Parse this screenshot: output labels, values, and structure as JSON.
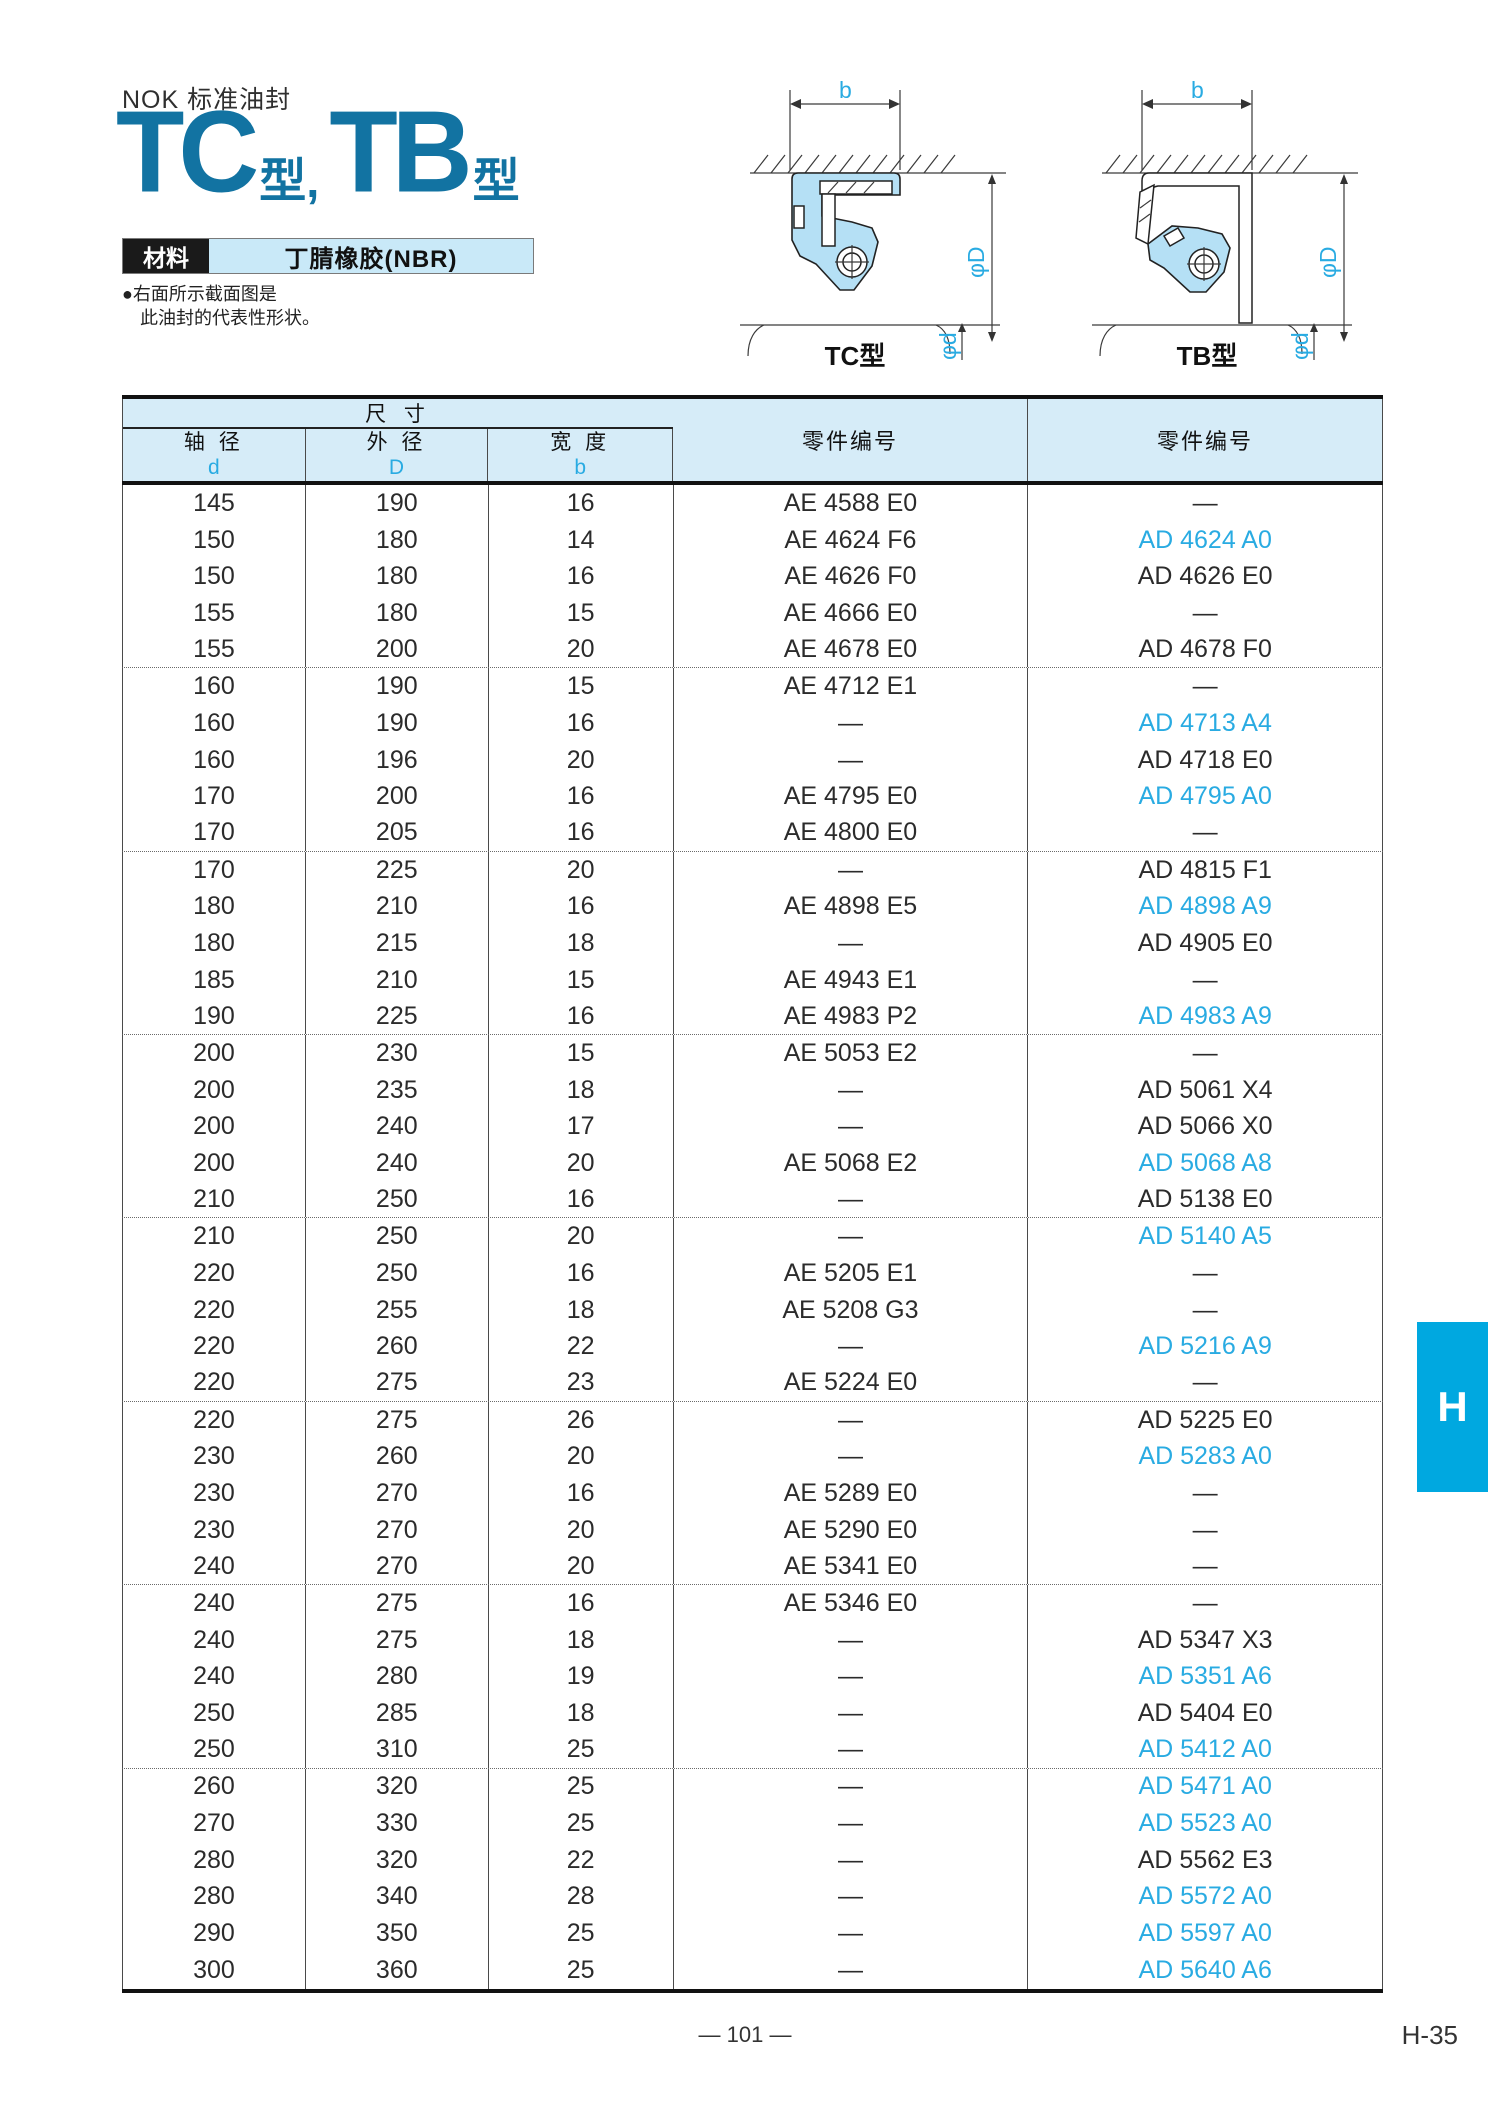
{
  "header": {
    "brand": "NOK 标准油封",
    "title": {
      "part1": "TC",
      "suffix1": "型,",
      "part2": "TB",
      "suffix2": "型"
    },
    "material_label": "材料",
    "material_value": "丁腈橡胶(NBR)",
    "note_lines": [
      "●右面所示截面图是",
      "此油封的代表性形状。"
    ]
  },
  "diagrams": {
    "tc": {
      "label": "TC型",
      "dims": {
        "width": "b",
        "outer": "φD",
        "shaft": "φd"
      }
    },
    "tb": {
      "label": "TB型",
      "dims": {
        "width": "b",
        "outer": "φD",
        "shaft": "φd"
      }
    }
  },
  "table": {
    "group_header": "尺 寸",
    "columns": [
      {
        "label": "轴 径",
        "symbol": "d"
      },
      {
        "label": "外 径",
        "symbol": "D"
      },
      {
        "label": "宽 度",
        "symbol": "b"
      },
      {
        "label": "零件编号"
      },
      {
        "label": "零件编号"
      }
    ],
    "rows": [
      {
        "d": "145",
        "D": "190",
        "b": "16",
        "tc": "AE 4588 E0",
        "tc_blue": false,
        "tb": "—",
        "tb_blue": false,
        "group_end": false
      },
      {
        "d": "150",
        "D": "180",
        "b": "14",
        "tc": "AE 4624 F6",
        "tc_blue": false,
        "tb": "AD 4624 A0",
        "tb_blue": true,
        "group_end": false
      },
      {
        "d": "150",
        "D": "180",
        "b": "16",
        "tc": "AE 4626 F0",
        "tc_blue": false,
        "tb": "AD 4626 E0",
        "tb_blue": false,
        "group_end": false
      },
      {
        "d": "155",
        "D": "180",
        "b": "15",
        "tc": "AE 4666 E0",
        "tc_blue": false,
        "tb": "—",
        "tb_blue": false,
        "group_end": false
      },
      {
        "d": "155",
        "D": "200",
        "b": "20",
        "tc": "AE 4678 E0",
        "tc_blue": false,
        "tb": "AD 4678 F0",
        "tb_blue": false,
        "group_end": true
      },
      {
        "d": "160",
        "D": "190",
        "b": "15",
        "tc": "AE 4712 E1",
        "tc_blue": false,
        "tb": "—",
        "tb_blue": false,
        "group_end": false
      },
      {
        "d": "160",
        "D": "190",
        "b": "16",
        "tc": "—",
        "tc_blue": false,
        "tb": "AD 4713 A4",
        "tb_blue": true,
        "group_end": false
      },
      {
        "d": "160",
        "D": "196",
        "b": "20",
        "tc": "—",
        "tc_blue": false,
        "tb": "AD 4718 E0",
        "tb_blue": false,
        "group_end": false
      },
      {
        "d": "170",
        "D": "200",
        "b": "16",
        "tc": "AE 4795 E0",
        "tc_blue": false,
        "tb": "AD 4795 A0",
        "tb_blue": true,
        "group_end": false
      },
      {
        "d": "170",
        "D": "205",
        "b": "16",
        "tc": "AE 4800 E0",
        "tc_blue": false,
        "tb": "—",
        "tb_blue": false,
        "group_end": true
      },
      {
        "d": "170",
        "D": "225",
        "b": "20",
        "tc": "—",
        "tc_blue": false,
        "tb": "AD 4815 F1",
        "tb_blue": false,
        "group_end": false
      },
      {
        "d": "180",
        "D": "210",
        "b": "16",
        "tc": "AE 4898 E5",
        "tc_blue": false,
        "tb": "AD 4898 A9",
        "tb_blue": true,
        "group_end": false
      },
      {
        "d": "180",
        "D": "215",
        "b": "18",
        "tc": "—",
        "tc_blue": false,
        "tb": "AD 4905 E0",
        "tb_blue": false,
        "group_end": false
      },
      {
        "d": "185",
        "D": "210",
        "b": "15",
        "tc": "AE 4943 E1",
        "tc_blue": false,
        "tb": "—",
        "tb_blue": false,
        "group_end": false
      },
      {
        "d": "190",
        "D": "225",
        "b": "16",
        "tc": "AE 4983 P2",
        "tc_blue": false,
        "tb": "AD 4983 A9",
        "tb_blue": true,
        "group_end": true
      },
      {
        "d": "200",
        "D": "230",
        "b": "15",
        "tc": "AE 5053 E2",
        "tc_blue": false,
        "tb": "—",
        "tb_blue": false,
        "group_end": false
      },
      {
        "d": "200",
        "D": "235",
        "b": "18",
        "tc": "—",
        "tc_blue": false,
        "tb": "AD 5061 X4",
        "tb_blue": false,
        "group_end": false
      },
      {
        "d": "200",
        "D": "240",
        "b": "17",
        "tc": "—",
        "tc_blue": false,
        "tb": "AD 5066 X0",
        "tb_blue": false,
        "group_end": false
      },
      {
        "d": "200",
        "D": "240",
        "b": "20",
        "tc": "AE 5068 E2",
        "tc_blue": false,
        "tb": "AD 5068 A8",
        "tb_blue": true,
        "group_end": false
      },
      {
        "d": "210",
        "D": "250",
        "b": "16",
        "tc": "—",
        "tc_blue": false,
        "tb": "AD 5138 E0",
        "tb_blue": false,
        "group_end": true
      },
      {
        "d": "210",
        "D": "250",
        "b": "20",
        "tc": "—",
        "tc_blue": false,
        "tb": "AD 5140 A5",
        "tb_blue": true,
        "group_end": false
      },
      {
        "d": "220",
        "D": "250",
        "b": "16",
        "tc": "AE 5205 E1",
        "tc_blue": false,
        "tb": "—",
        "tb_blue": false,
        "group_end": false
      },
      {
        "d": "220",
        "D": "255",
        "b": "18",
        "tc": "AE 5208 G3",
        "tc_blue": false,
        "tb": "—",
        "tb_blue": false,
        "group_end": false
      },
      {
        "d": "220",
        "D": "260",
        "b": "22",
        "tc": "—",
        "tc_blue": false,
        "tb": "AD 5216 A9",
        "tb_blue": true,
        "group_end": false
      },
      {
        "d": "220",
        "D": "275",
        "b": "23",
        "tc": "AE 5224 E0",
        "tc_blue": false,
        "tb": "—",
        "tb_blue": false,
        "group_end": true
      },
      {
        "d": "220",
        "D": "275",
        "b": "26",
        "tc": "—",
        "tc_blue": false,
        "tb": "AD 5225 E0",
        "tb_blue": false,
        "group_end": false
      },
      {
        "d": "230",
        "D": "260",
        "b": "20",
        "tc": "—",
        "tc_blue": false,
        "tb": "AD 5283 A0",
        "tb_blue": true,
        "group_end": false
      },
      {
        "d": "230",
        "D": "270",
        "b": "16",
        "tc": "AE 5289 E0",
        "tc_blue": false,
        "tb": "—",
        "tb_blue": false,
        "group_end": false
      },
      {
        "d": "230",
        "D": "270",
        "b": "20",
        "tc": "AE 5290 E0",
        "tc_blue": false,
        "tb": "—",
        "tb_blue": false,
        "group_end": false
      },
      {
        "d": "240",
        "D": "270",
        "b": "20",
        "tc": "AE 5341 E0",
        "tc_blue": false,
        "tb": "—",
        "tb_blue": false,
        "group_end": true
      },
      {
        "d": "240",
        "D": "275",
        "b": "16",
        "tc": "AE 5346 E0",
        "tc_blue": false,
        "tb": "—",
        "tb_blue": false,
        "group_end": false
      },
      {
        "d": "240",
        "D": "275",
        "b": "18",
        "tc": "—",
        "tc_blue": false,
        "tb": "AD 5347 X3",
        "tb_blue": false,
        "group_end": false
      },
      {
        "d": "240",
        "D": "280",
        "b": "19",
        "tc": "—",
        "tc_blue": false,
        "tb": "AD 5351 A6",
        "tb_blue": true,
        "group_end": false
      },
      {
        "d": "250",
        "D": "285",
        "b": "18",
        "tc": "—",
        "tc_blue": false,
        "tb": "AD 5404 E0",
        "tb_blue": false,
        "group_end": false
      },
      {
        "d": "250",
        "D": "310",
        "b": "25",
        "tc": "—",
        "tc_blue": false,
        "tb": "AD 5412 A0",
        "tb_blue": true,
        "group_end": true
      },
      {
        "d": "260",
        "D": "320",
        "b": "25",
        "tc": "—",
        "tc_blue": false,
        "tb": "AD 5471 A0",
        "tb_blue": true,
        "group_end": false
      },
      {
        "d": "270",
        "D": "330",
        "b": "25",
        "tc": "—",
        "tc_blue": false,
        "tb": "AD 5523 A0",
        "tb_blue": true,
        "group_end": false
      },
      {
        "d": "280",
        "D": "320",
        "b": "22",
        "tc": "—",
        "tc_blue": false,
        "tb": "AD 5562 E3",
        "tb_blue": false,
        "group_end": false
      },
      {
        "d": "280",
        "D": "340",
        "b": "28",
        "tc": "—",
        "tc_blue": false,
        "tb": "AD 5572 A0",
        "tb_blue": true,
        "group_end": false
      },
      {
        "d": "290",
        "D": "350",
        "b": "25",
        "tc": "—",
        "tc_blue": false,
        "tb": "AD 5597 A0",
        "tb_blue": true,
        "group_end": false
      },
      {
        "d": "300",
        "D": "360",
        "b": "25",
        "tc": "—",
        "tc_blue": false,
        "tb": "AD 5640 A6",
        "tb_blue": true,
        "group_end": false
      }
    ]
  },
  "footer": {
    "page_number": "— 101 —",
    "section_code": "H-35",
    "side_tab": "H"
  },
  "colors": {
    "accent_cyan": "#29abe2",
    "title_teal": "#1273a2",
    "tab_blue": "#00a8e0",
    "header_bg": "#d6ecf8",
    "material_bg": "#c9e9f8",
    "rubber_fill": "#b5e0f5"
  }
}
